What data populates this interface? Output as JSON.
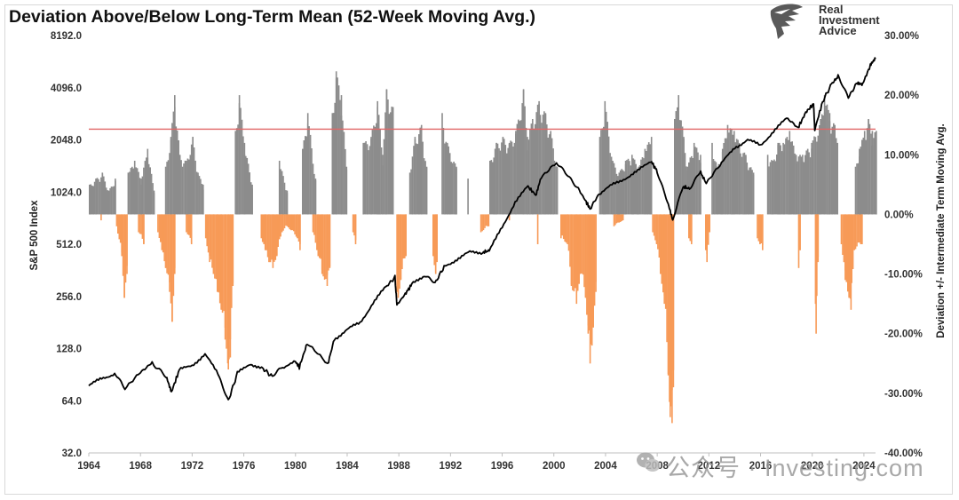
{
  "title": "Deviation Above/Below Long-Term Mean (52-Week Moving Avg.)",
  "logo": {
    "line1": "Real",
    "line2": "Investment",
    "line3": "Advice"
  },
  "watermark": "公众号 · Investing.com",
  "colors": {
    "sp500_line": "#000000",
    "positive_deviation": "#8c8c8c",
    "negative_deviation": "#f79a57",
    "threshold_line": "#e06666",
    "frame": "#d9d9d9"
  },
  "chart_data": {
    "type": "bar+line",
    "title": "Deviation Above/Below Long-Term Mean (52-Week Moving Avg.)",
    "x_ticks": [
      "1964",
      "1968",
      "1972",
      "1976",
      "1980",
      "1984",
      "1988",
      "1992",
      "1996",
      "2000",
      "2004",
      "2008",
      "2012",
      "2016",
      "2020",
      "2024"
    ],
    "xlim": [
      1964,
      2024.9
    ],
    "left_axis": {
      "label": "S&P 500 Index",
      "scale": "log2",
      "ylim": [
        32,
        8192
      ],
      "ticks": [
        "32.0",
        "64.0",
        "128.0",
        "256.0",
        "512.0",
        "1024.0",
        "2048.0",
        "4096.0",
        "8192.0"
      ]
    },
    "right_axis": {
      "label": "Deviation +/- Intermediate Term Moving Avg.",
      "ylim": [
        -40,
        30
      ],
      "ticks": [
        "-40.00%",
        "-30.00%",
        "-20.00%",
        "-10.00%",
        "0.00%",
        "10.00%",
        "20.00%",
        "30.00%"
      ]
    },
    "threshold_line": {
      "axis": "right",
      "value": 14.3
    },
    "series": [
      {
        "name": "S&P 500 Index",
        "axis": "left",
        "type": "line",
        "points": [
          [
            1964.0,
            78
          ],
          [
            1965.0,
            86
          ],
          [
            1966.0,
            92
          ],
          [
            1966.8,
            75
          ],
          [
            1968.0,
            95
          ],
          [
            1968.9,
            106
          ],
          [
            1970.0,
            88
          ],
          [
            1970.4,
            72
          ],
          [
            1971.0,
            96
          ],
          [
            1972.0,
            103
          ],
          [
            1973.0,
            118
          ],
          [
            1974.0,
            92
          ],
          [
            1974.8,
            64
          ],
          [
            1975.5,
            92
          ],
          [
            1976.5,
            105
          ],
          [
            1977.5,
            98
          ],
          [
            1978.2,
            88
          ],
          [
            1979.0,
            100
          ],
          [
            1980.0,
            107
          ],
          [
            1980.3,
            100
          ],
          [
            1980.9,
            137
          ],
          [
            1982.5,
            104
          ],
          [
            1983.0,
            145
          ],
          [
            1984.0,
            165
          ],
          [
            1985.0,
            180
          ],
          [
            1986.0,
            235
          ],
          [
            1987.0,
            290
          ],
          [
            1987.7,
            330
          ],
          [
            1987.85,
            228
          ],
          [
            1988.5,
            265
          ],
          [
            1989.0,
            300
          ],
          [
            1990.0,
            340
          ],
          [
            1990.8,
            305
          ],
          [
            1991.5,
            380
          ],
          [
            1992.5,
            420
          ],
          [
            1993.5,
            460
          ],
          [
            1994.5,
            460
          ],
          [
            1995.0,
            470
          ],
          [
            1996.0,
            640
          ],
          [
            1997.0,
            900
          ],
          [
            1998.0,
            1100
          ],
          [
            1998.6,
            985
          ],
          [
            1999.0,
            1250
          ],
          [
            2000.2,
            1500
          ],
          [
            2001.0,
            1300
          ],
          [
            2001.8,
            1100
          ],
          [
            2002.5,
            900
          ],
          [
            2002.8,
            820
          ],
          [
            2003.5,
            1000
          ],
          [
            2004.5,
            1120
          ],
          [
            2005.5,
            1230
          ],
          [
            2006.5,
            1350
          ],
          [
            2007.5,
            1550
          ],
          [
            2008.0,
            1350
          ],
          [
            2008.8,
            900
          ],
          [
            2009.2,
            700
          ],
          [
            2010.0,
            1100
          ],
          [
            2010.5,
            1070
          ],
          [
            2011.3,
            1350
          ],
          [
            2011.8,
            1150
          ],
          [
            2013.0,
            1500
          ],
          [
            2014.0,
            1850
          ],
          [
            2015.0,
            2050
          ],
          [
            2016.0,
            1900
          ],
          [
            2017.0,
            2300
          ],
          [
            2018.0,
            2700
          ],
          [
            2018.9,
            2400
          ],
          [
            2019.5,
            2950
          ],
          [
            2020.1,
            3300
          ],
          [
            2020.2,
            2350
          ],
          [
            2020.8,
            3400
          ],
          [
            2021.5,
            4300
          ],
          [
            2022.0,
            4750
          ],
          [
            2022.8,
            3600
          ],
          [
            2023.5,
            4400
          ],
          [
            2023.9,
            4300
          ],
          [
            2024.5,
            5500
          ],
          [
            2024.9,
            6000
          ]
        ]
      },
      {
        "name": "Deviation above long-term mean",
        "axis": "right",
        "type": "bar",
        "points": [
          [
            1964.0,
            5
          ],
          [
            1964.5,
            6
          ],
          [
            1965.0,
            7
          ],
          [
            1965.5,
            4
          ],
          [
            1966.0,
            6
          ],
          [
            1967.0,
            7
          ],
          [
            1967.5,
            9
          ],
          [
            1968.0,
            6
          ],
          [
            1968.5,
            11
          ],
          [
            1969.0,
            4
          ],
          [
            1969.9,
            8
          ],
          [
            1970.3,
            13
          ],
          [
            1970.6,
            20
          ],
          [
            1971.0,
            10
          ],
          [
            1971.5,
            9
          ],
          [
            1972.0,
            13
          ],
          [
            1972.4,
            7
          ],
          [
            1972.8,
            5
          ],
          [
            1975.3,
            14
          ],
          [
            1975.6,
            20
          ],
          [
            1976.0,
            12
          ],
          [
            1976.6,
            5
          ],
          [
            1978.7,
            9
          ],
          [
            1979.3,
            4
          ],
          [
            1980.5,
            11
          ],
          [
            1980.9,
            17
          ],
          [
            1981.5,
            6
          ],
          [
            1982.8,
            17
          ],
          [
            1983.1,
            24
          ],
          [
            1983.5,
            20
          ],
          [
            1983.9,
            8
          ],
          [
            1985.2,
            12
          ],
          [
            1985.8,
            13
          ],
          [
            1986.3,
            19
          ],
          [
            1986.7,
            10
          ],
          [
            1987.0,
            21
          ],
          [
            1987.5,
            18
          ],
          [
            1988.8,
            7
          ],
          [
            1989.2,
            13
          ],
          [
            1989.7,
            15
          ],
          [
            1990.1,
            8
          ],
          [
            1991.3,
            17
          ],
          [
            1991.7,
            12
          ],
          [
            1992.4,
            8
          ],
          [
            1993.3,
            6
          ],
          [
            1995.0,
            9
          ],
          [
            1995.5,
            12
          ],
          [
            1996.0,
            13
          ],
          [
            1996.5,
            12
          ],
          [
            1997.0,
            14
          ],
          [
            1997.6,
            21
          ],
          [
            1997.9,
            13
          ],
          [
            1998.3,
            16
          ],
          [
            1998.8,
            19
          ],
          [
            1999.3,
            17
          ],
          [
            1999.7,
            14
          ],
          [
            2000.2,
            8
          ],
          [
            2003.5,
            13
          ],
          [
            2003.9,
            19
          ],
          [
            2004.5,
            9
          ],
          [
            2005.0,
            7
          ],
          [
            2005.5,
            9
          ],
          [
            2006.0,
            10
          ],
          [
            2006.5,
            8
          ],
          [
            2007.0,
            11
          ],
          [
            2007.5,
            13
          ],
          [
            2009.3,
            16
          ],
          [
            2009.6,
            20
          ],
          [
            2010.0,
            13
          ],
          [
            2010.3,
            8
          ],
          [
            2010.8,
            12
          ],
          [
            2011.3,
            10
          ],
          [
            2012.2,
            12
          ],
          [
            2012.6,
            8
          ],
          [
            2013.0,
            11
          ],
          [
            2013.4,
            15
          ],
          [
            2013.9,
            14
          ],
          [
            2014.3,
            12
          ],
          [
            2014.8,
            10
          ],
          [
            2015.4,
            7
          ],
          [
            2016.5,
            10
          ],
          [
            2016.9,
            9
          ],
          [
            2017.3,
            12
          ],
          [
            2017.7,
            12
          ],
          [
            2018.2,
            14
          ],
          [
            2018.7,
            10
          ],
          [
            2019.2,
            10
          ],
          [
            2019.6,
            11
          ],
          [
            2019.9,
            12
          ],
          [
            2020.6,
            16
          ],
          [
            2020.9,
            20
          ],
          [
            2021.3,
            17
          ],
          [
            2021.7,
            15
          ],
          [
            2021.9,
            12
          ],
          [
            2023.3,
            8
          ],
          [
            2023.6,
            11
          ],
          [
            2024.0,
            14
          ],
          [
            2024.3,
            16
          ],
          [
            2024.6,
            14
          ],
          [
            2024.9,
            14
          ]
        ]
      },
      {
        "name": "Deviation below long-term mean",
        "axis": "right",
        "type": "bar",
        "points": [
          [
            1964.9,
            -1
          ],
          [
            1966.1,
            -2
          ],
          [
            1966.5,
            -7
          ],
          [
            1966.7,
            -14
          ],
          [
            1966.9,
            -10
          ],
          [
            1967.8,
            -3
          ],
          [
            1968.2,
            -5
          ],
          [
            1969.3,
            -3
          ],
          [
            1969.6,
            -6
          ],
          [
            1969.9,
            -9
          ],
          [
            1970.2,
            -13
          ],
          [
            1970.4,
            -18
          ],
          [
            1970.6,
            -10
          ],
          [
            1971.5,
            -3
          ],
          [
            1971.9,
            -5
          ],
          [
            1973.0,
            -4
          ],
          [
            1973.3,
            -8
          ],
          [
            1973.6,
            -10
          ],
          [
            1973.9,
            -13
          ],
          [
            1974.2,
            -16
          ],
          [
            1974.5,
            -21
          ],
          [
            1974.75,
            -26
          ],
          [
            1974.9,
            -24
          ],
          [
            1975.1,
            -12
          ],
          [
            1977.3,
            -4
          ],
          [
            1977.6,
            -6
          ],
          [
            1977.9,
            -8
          ],
          [
            1978.2,
            -9
          ],
          [
            1978.5,
            -7
          ],
          [
            1978.9,
            -3
          ],
          [
            1979.3,
            -2
          ],
          [
            1980.1,
            -4
          ],
          [
            1980.3,
            -6
          ],
          [
            1981.3,
            -3
          ],
          [
            1981.7,
            -7
          ],
          [
            1982.0,
            -10
          ],
          [
            1982.4,
            -12
          ],
          [
            1982.6,
            -9
          ],
          [
            1984.4,
            -3
          ],
          [
            1984.6,
            -5
          ],
          [
            1987.8,
            -13
          ],
          [
            1987.9,
            -14
          ],
          [
            1988.1,
            -11
          ],
          [
            1988.5,
            -7
          ],
          [
            1990.6,
            -7
          ],
          [
            1990.8,
            -10
          ],
          [
            1990.9,
            -8
          ],
          [
            1994.3,
            -3
          ],
          [
            1994.9,
            -2
          ],
          [
            1996.5,
            -1
          ],
          [
            1998.7,
            -5
          ],
          [
            2000.5,
            -4
          ],
          [
            2001.0,
            -5
          ],
          [
            2001.3,
            -12
          ],
          [
            2001.7,
            -15
          ],
          [
            2002.0,
            -10
          ],
          [
            2002.4,
            -14
          ],
          [
            2002.6,
            -20
          ],
          [
            2002.75,
            -25
          ],
          [
            2002.9,
            -22
          ],
          [
            2003.2,
            -13
          ],
          [
            2004.6,
            -2
          ],
          [
            2005.3,
            -1
          ],
          [
            2007.6,
            -3
          ],
          [
            2007.9,
            -5
          ],
          [
            2008.2,
            -10
          ],
          [
            2008.5,
            -15
          ],
          [
            2008.8,
            -27
          ],
          [
            2008.95,
            -34
          ],
          [
            2009.1,
            -35
          ],
          [
            2009.2,
            -29
          ],
          [
            2010.4,
            -4
          ],
          [
            2010.6,
            -5
          ],
          [
            2011.7,
            -6
          ],
          [
            2011.8,
            -8
          ],
          [
            2012.0,
            -3
          ],
          [
            2015.7,
            -4
          ],
          [
            2015.9,
            -5
          ],
          [
            2016.1,
            -6
          ],
          [
            2018.9,
            -9
          ],
          [
            2019.0,
            -6
          ],
          [
            2020.2,
            -15
          ],
          [
            2020.25,
            -20
          ],
          [
            2020.4,
            -8
          ],
          [
            2022.2,
            -5
          ],
          [
            2022.5,
            -11
          ],
          [
            2022.8,
            -14
          ],
          [
            2022.95,
            -16
          ],
          [
            2023.2,
            -6
          ],
          [
            2023.8,
            -5
          ]
        ]
      }
    ]
  }
}
